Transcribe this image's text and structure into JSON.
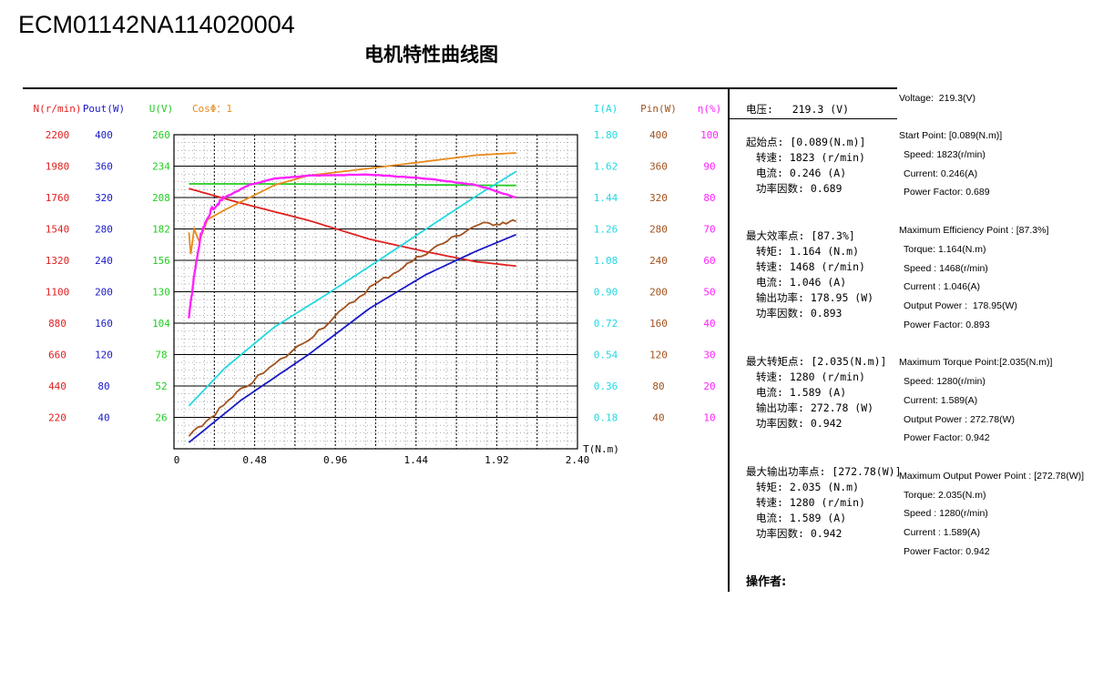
{
  "model_id": "ECM01142NA114020004",
  "chart_title": "电机特性曲线图",
  "colors": {
    "speed": "#e02020",
    "pout": "#1a1ac8",
    "voltage": "#22cc22",
    "cos": "#e88a1a",
    "current": "#22d8e0",
    "pin": "#a0521e",
    "eff": "#ff22ff",
    "grid": "#000000"
  },
  "chart_data": {
    "type": "line",
    "x_axis": {
      "label": "T(N.m)",
      "ticks": [
        "0",
        "0.48",
        "0.96",
        "1.44",
        "1.92",
        "2.40"
      ],
      "range": [
        0,
        2.4
      ]
    },
    "left_axes": [
      {
        "label": "N(r/min)",
        "color": "#e02020",
        "ticks": [
          "2200",
          "1980",
          "1760",
          "1540",
          "1320",
          "1100",
          "880",
          "660",
          "440",
          "220"
        ],
        "range": [
          0,
          2200
        ]
      },
      {
        "label": "Pout(W)",
        "color": "#1a1ac8",
        "ticks": [
          "400",
          "360",
          "320",
          "280",
          "240",
          "200",
          "160",
          "120",
          "80",
          "40"
        ],
        "range": [
          0,
          400
        ]
      },
      {
        "label": "U(V)",
        "color": "#22cc22",
        "ticks": [
          "260",
          "234",
          "208",
          "182",
          "156",
          "130",
          "104",
          "78",
          "52",
          "26"
        ],
        "range": [
          0,
          260
        ]
      },
      {
        "label": "CosΦ：1",
        "color": "#e88a1a",
        "ticks": [],
        "range": [
          0,
          1
        ]
      }
    ],
    "right_axes": [
      {
        "label": "I(A)",
        "color": "#22d8e0",
        "ticks": [
          "1.80",
          "1.62",
          "1.44",
          "1.26",
          "1.08",
          "0.90",
          "0.72",
          "0.54",
          "0.36",
          "0.18"
        ],
        "range": [
          0,
          1.8
        ]
      },
      {
        "label": "Pin(W)",
        "color": "#a0521e",
        "ticks": [
          "400",
          "360",
          "320",
          "280",
          "240",
          "200",
          "160",
          "120",
          "80",
          "40"
        ],
        "range": [
          0,
          400
        ]
      },
      {
        "label": "η(%)",
        "color": "#ff22ff",
        "ticks": [
          "100",
          "90",
          "80",
          "70",
          "60",
          "50",
          "40",
          "30",
          "20",
          "10"
        ],
        "range": [
          0,
          100
        ]
      }
    ],
    "series": [
      {
        "key": "speed",
        "axis": "N",
        "max": 2200,
        "color": "#e02020",
        "points": [
          [
            0.089,
            1823
          ],
          [
            0.4,
            1720
          ],
          [
            0.8,
            1600
          ],
          [
            1.164,
            1468
          ],
          [
            1.5,
            1380
          ],
          [
            1.8,
            1310
          ],
          [
            2.035,
            1280
          ]
        ]
      },
      {
        "key": "pout",
        "axis": "Pout",
        "max": 400,
        "color": "#1a1ac8",
        "points": [
          [
            0.089,
            8
          ],
          [
            0.4,
            62
          ],
          [
            0.8,
            120
          ],
          [
            1.164,
            178.95
          ],
          [
            1.5,
            222
          ],
          [
            1.8,
            252
          ],
          [
            2.035,
            272.78
          ]
        ]
      },
      {
        "key": "voltage",
        "axis": "U",
        "max": 260,
        "color": "#22cc22",
        "points": [
          [
            0.089,
            219.3
          ],
          [
            0.5,
            219.3
          ],
          [
            1.0,
            219
          ],
          [
            1.5,
            218.5
          ],
          [
            2.035,
            218
          ]
        ]
      },
      {
        "key": "cos",
        "axis": "Cos",
        "max": 1,
        "color": "#e88a1a",
        "points": [
          [
            0.089,
            0.689
          ],
          [
            0.1,
            0.62
          ],
          [
            0.12,
            0.7
          ],
          [
            0.15,
            0.66
          ],
          [
            0.2,
            0.73
          ],
          [
            0.3,
            0.76
          ],
          [
            0.45,
            0.8
          ],
          [
            0.6,
            0.84
          ],
          [
            0.8,
            0.87
          ],
          [
            1.164,
            0.893
          ],
          [
            1.5,
            0.915
          ],
          [
            1.8,
            0.935
          ],
          [
            2.035,
            0.942
          ]
        ]
      },
      {
        "key": "current",
        "axis": "I",
        "max": 1.8,
        "color": "#22d8e0",
        "points": [
          [
            0.089,
            0.246
          ],
          [
            0.3,
            0.46
          ],
          [
            0.6,
            0.7
          ],
          [
            0.9,
            0.88
          ],
          [
            1.164,
            1.046
          ],
          [
            1.5,
            1.26
          ],
          [
            1.8,
            1.45
          ],
          [
            2.035,
            1.589
          ]
        ]
      },
      {
        "key": "pin",
        "axis": "Pin",
        "max": 400,
        "color": "#a0521e",
        "points": [
          [
            0.089,
            15
          ],
          [
            0.4,
            75
          ],
          [
            0.8,
            140
          ],
          [
            1.164,
            205
          ],
          [
            1.5,
            250
          ],
          [
            1.8,
            285
          ],
          [
            2.035,
            289.6
          ]
        ]
      },
      {
        "key": "eff",
        "axis": "η",
        "max": 100,
        "color": "#ff22ff",
        "points": [
          [
            0.089,
            42
          ],
          [
            0.12,
            55
          ],
          [
            0.16,
            68
          ],
          [
            0.22,
            76
          ],
          [
            0.3,
            80
          ],
          [
            0.45,
            84
          ],
          [
            0.6,
            86
          ],
          [
            0.8,
            87
          ],
          [
            1.164,
            87.3
          ],
          [
            1.5,
            86
          ],
          [
            1.8,
            84
          ],
          [
            2.035,
            80
          ]
        ]
      }
    ]
  },
  "panel_cn": {
    "voltage": "电压:   219.3 (V)",
    "start_header": "起始点: [0.089(N.m)]",
    "start_lines": [
      "转速: 1823 (r/min)",
      "电流: 0.246 (A)",
      "功率因数: 0.689"
    ],
    "eff_header": "最大效率点: [87.3%]",
    "eff_lines": [
      "转矩: 1.164 (N.m)",
      "转速: 1468 (r/min)",
      "电流: 1.046 (A)",
      "输出功率: 178.95 (W)",
      "功率因数: 0.893"
    ],
    "torque_header": "最大转矩点: [2.035(N.m)]",
    "torque_lines": [
      "转速: 1280 (r/min)",
      "电流: 1.589 (A)",
      "输出功率: 272.78 (W)",
      "功率因数: 0.942"
    ],
    "power_header": "最大输出功率点: [272.78(W)]",
    "power_lines": [
      "转矩: 2.035 (N.m)",
      "转速: 1280 (r/min)",
      "电流: 1.589 (A)",
      "功率因数: 0.942"
    ],
    "operator": "操作者:"
  },
  "panel_en": {
    "voltage": "Voltage:  219.3(V)",
    "start_header": "Start Point: [0.089(N.m)]",
    "start_lines": [
      "Speed: 1823(r/min)",
      "Current: 0.246(A)",
      "Power Factor: 0.689"
    ],
    "eff_header": "Maximum Efficiency Point : [87.3%]",
    "eff_lines": [
      "Torque: 1.164(N.m)",
      "Speed : 1468(r/min)",
      "Current : 1.046(A)",
      "Output Power :  178.95(W)",
      "Power Factor: 0.893"
    ],
    "torque_header": "Maximum Torque Point:[2.035(N.m)]",
    "torque_lines": [
      "Speed: 1280(r/min)",
      "Current: 1.589(A)",
      "Output Power : 272.78(W)",
      "Power Factor: 0.942"
    ],
    "power_header": "Maximum Output Power Point : [272.78(W)]",
    "power_lines": [
      "Torque: 2.035(N.m)",
      "Speed : 1280(r/min)",
      "Current : 1.589(A)",
      "Power Factor: 0.942"
    ]
  }
}
